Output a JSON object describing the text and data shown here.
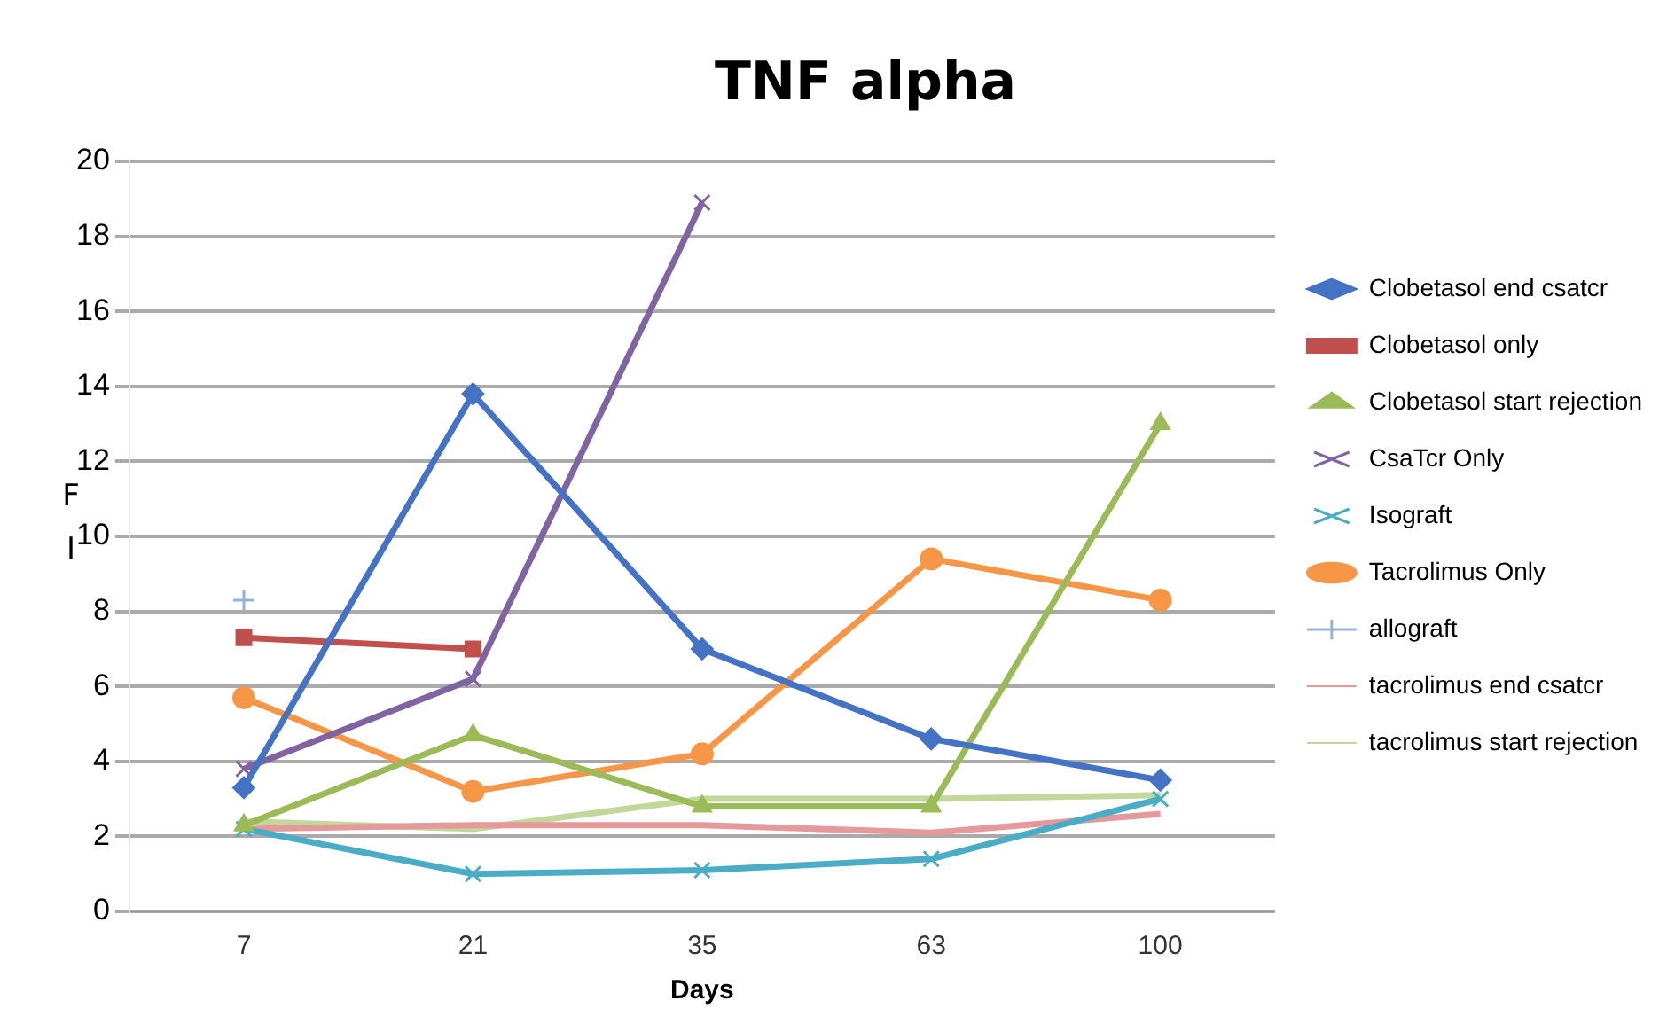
{
  "chart_data": {
    "type": "line",
    "title": "TNF alpha",
    "xlabel": "Days",
    "ylabel": "FI",
    "categories": [
      "7",
      "21",
      "35",
      "63",
      "100"
    ],
    "ylim": [
      0,
      20
    ],
    "yticks": [
      0,
      2,
      4,
      6,
      8,
      10,
      12,
      14,
      16,
      18,
      20
    ],
    "grid": "y",
    "legend": "right",
    "series": [
      {
        "name": "Clobetasol end csatcr",
        "color": "#4472c4",
        "marker": "diamond",
        "values": [
          3.3,
          13.8,
          7.0,
          4.6,
          3.5
        ]
      },
      {
        "name": "Clobetasol only",
        "color": "#c0504d",
        "marker": "square",
        "values": [
          7.3,
          7.0,
          null,
          null,
          null
        ]
      },
      {
        "name": "Clobetasol start rejection",
        "color": "#9bbb59",
        "marker": "triangle",
        "values": [
          2.3,
          4.7,
          2.8,
          2.8,
          13.0
        ]
      },
      {
        "name": "CsaTcr Only",
        "color": "#8064a2",
        "marker": "cross",
        "values": [
          3.8,
          6.2,
          18.9,
          null,
          null
        ]
      },
      {
        "name": "Isograft",
        "color": "#4bacc6",
        "marker": "cross",
        "values": [
          2.2,
          1.0,
          1.1,
          1.4,
          3.0
        ]
      },
      {
        "name": "Tacrolimus Only",
        "color": "#f79646",
        "marker": "circle",
        "values": [
          5.7,
          3.2,
          4.2,
          9.4,
          8.3
        ]
      },
      {
        "name": "allograft",
        "color": "#95b3d7",
        "marker": "plus",
        "values": [
          8.3,
          null,
          null,
          null,
          null
        ]
      },
      {
        "name": "tacrolimus end csatcr",
        "color": "#e6999a",
        "marker": "none",
        "values": [
          2.2,
          2.3,
          2.3,
          2.1,
          2.6
        ]
      },
      {
        "name": "tacrolimus start rejection",
        "color": "#c3d69b",
        "marker": "none",
        "values": [
          2.4,
          2.2,
          3.0,
          3.0,
          3.1
        ]
      }
    ]
  }
}
